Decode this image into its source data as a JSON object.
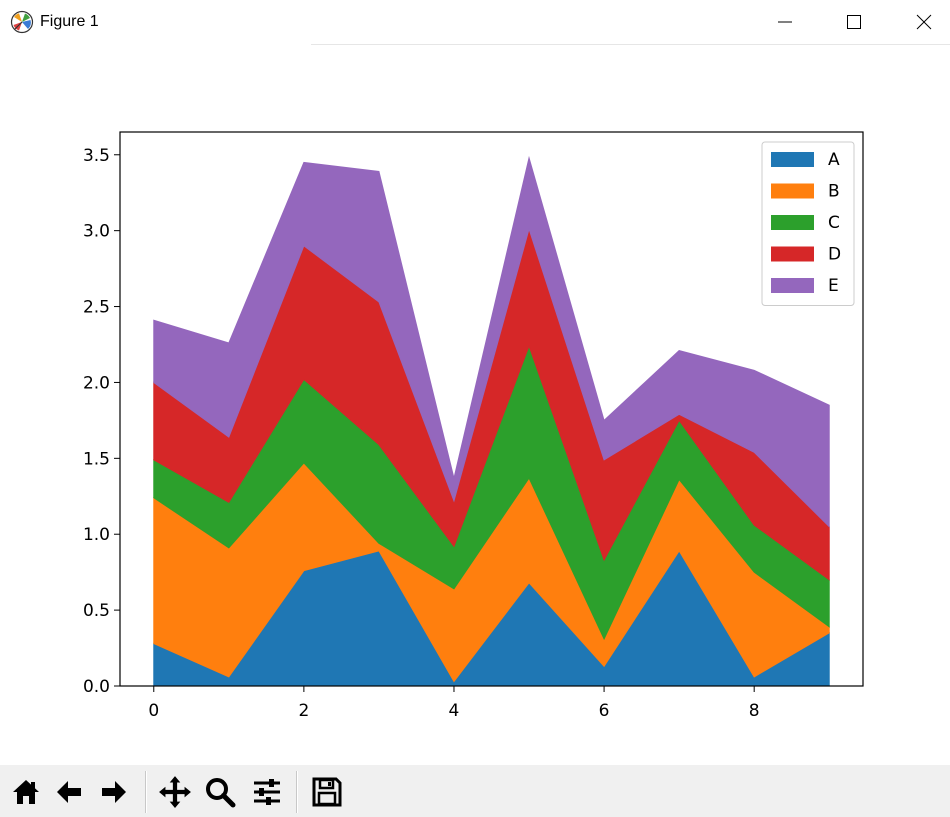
{
  "window": {
    "title": "Figure 1"
  },
  "toolbar": {
    "buttons": [
      {
        "name": "home",
        "icon": "home-icon"
      },
      {
        "name": "back",
        "icon": "arrow-left-icon"
      },
      {
        "name": "forward",
        "icon": "arrow-right-icon"
      },
      {
        "name": "pan",
        "icon": "move-icon"
      },
      {
        "name": "zoom",
        "icon": "magnifier-icon"
      },
      {
        "name": "configure-subplots",
        "icon": "sliders-icon"
      },
      {
        "name": "save",
        "icon": "floppy-disk-icon"
      }
    ]
  },
  "chart_data": {
    "type": "area",
    "stacked": true,
    "x": [
      0,
      1,
      2,
      3,
      4,
      5,
      6,
      7,
      8,
      9
    ],
    "series": [
      {
        "name": "A",
        "color": "#1f77b4",
        "values": [
          0.28,
          0.06,
          0.76,
          0.89,
          0.03,
          0.68,
          0.13,
          0.89,
          0.06,
          0.35
        ]
      },
      {
        "name": "B",
        "color": "#ff7f0e",
        "values": [
          0.96,
          0.85,
          0.71,
          0.05,
          0.61,
          0.69,
          0.18,
          0.47,
          0.69,
          0.04
        ]
      },
      {
        "name": "C",
        "color": "#2ca02c",
        "values": [
          0.25,
          0.3,
          0.55,
          0.65,
          0.28,
          0.87,
          0.52,
          0.39,
          0.31,
          0.31
        ]
      },
      {
        "name": "D",
        "color": "#d62728",
        "values": [
          0.51,
          0.43,
          0.88,
          0.94,
          0.3,
          0.77,
          0.66,
          0.04,
          0.48,
          0.35
        ]
      },
      {
        "name": "E",
        "color": "#9467bd",
        "values": [
          0.41,
          0.62,
          0.55,
          0.86,
          0.15,
          0.47,
          0.26,
          0.42,
          0.54,
          0.8
        ]
      }
    ],
    "xticks": [
      0,
      2,
      4,
      6,
      8
    ],
    "xtick_labels": [
      "0",
      "2",
      "4",
      "6",
      "8"
    ],
    "yticks": [
      0.0,
      0.5,
      1.0,
      1.5,
      2.0,
      2.5,
      3.0,
      3.5
    ],
    "ytick_labels": [
      "0.0",
      "0.5",
      "1.0",
      "1.5",
      "2.0",
      "2.5",
      "3.0",
      "3.5"
    ],
    "xlim": [
      -0.45,
      9.45
    ],
    "ylim": [
      0,
      3.65
    ],
    "legend_position": "top-right",
    "grid": false
  }
}
